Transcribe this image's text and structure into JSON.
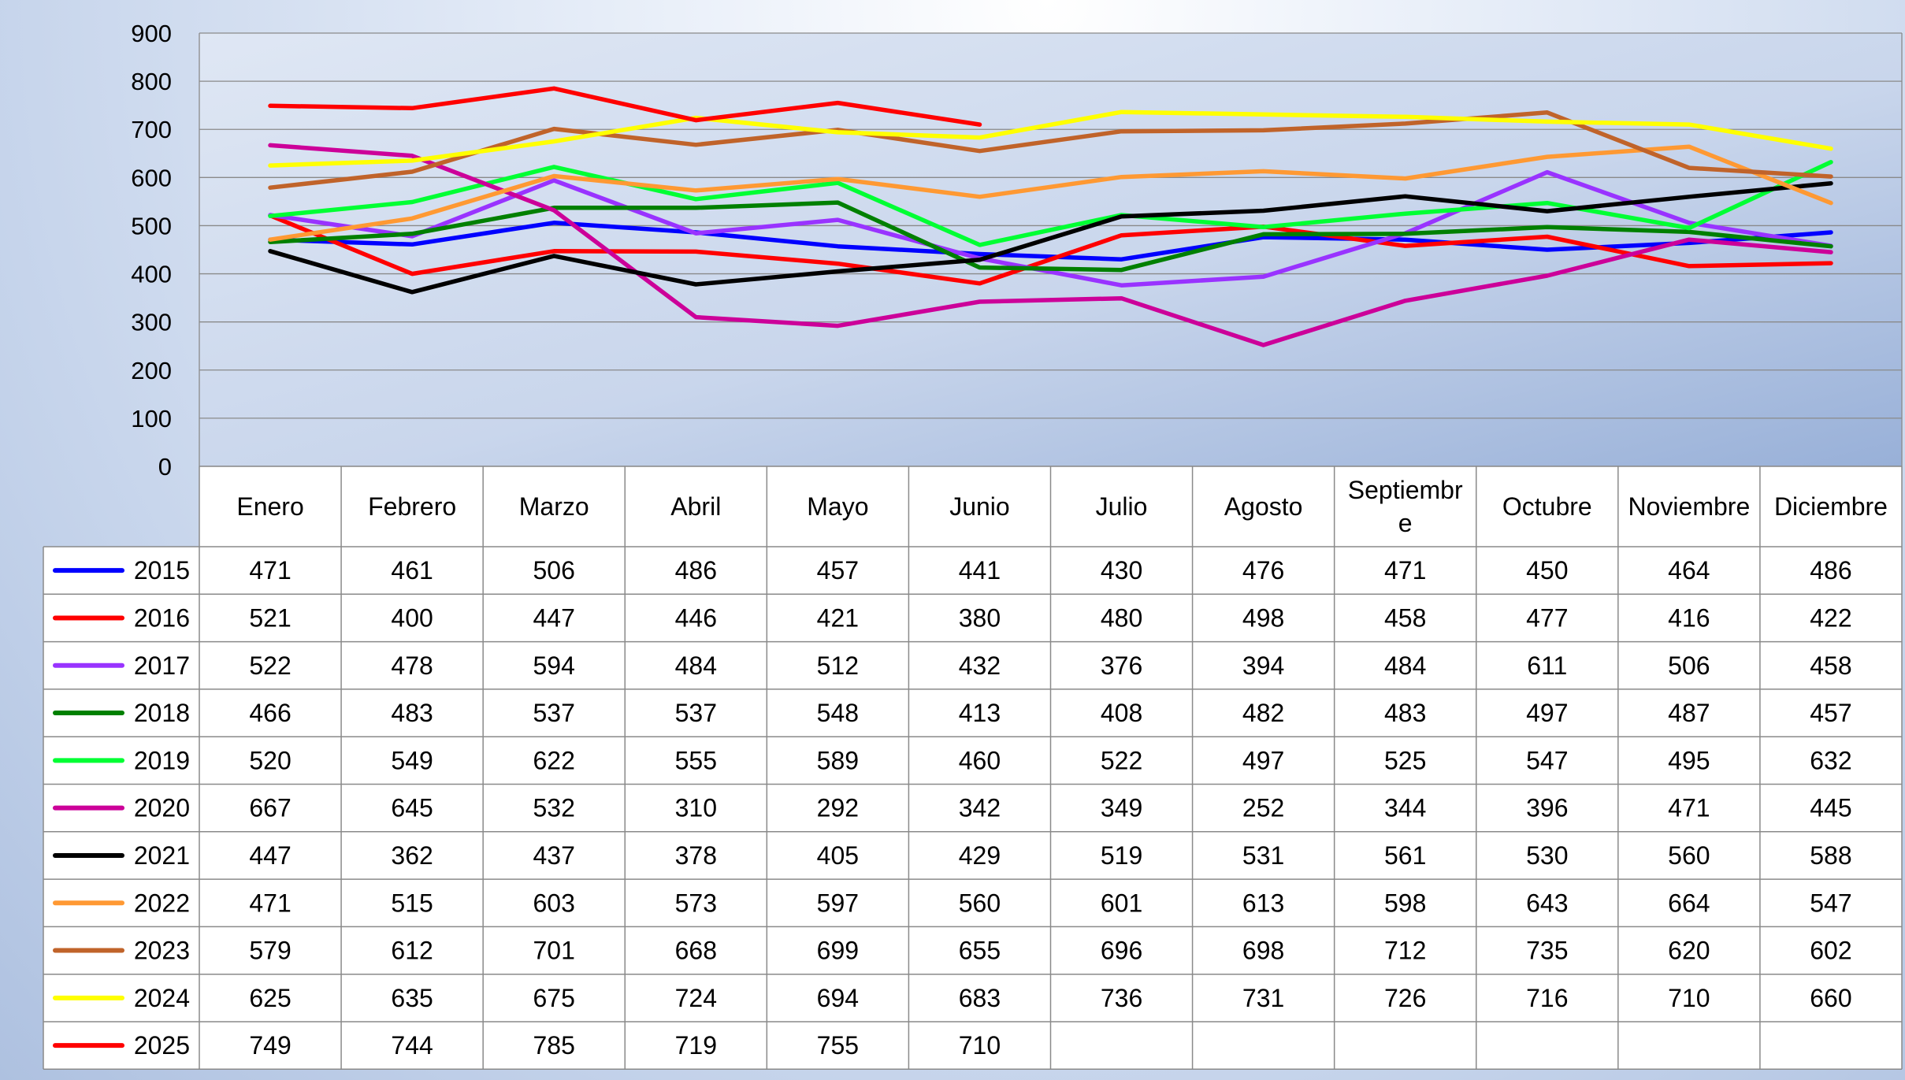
{
  "chart_data": {
    "type": "line",
    "title": "",
    "xlabel": "",
    "ylabel": "",
    "ylim": [
      0,
      900
    ],
    "yticks": [
      0,
      100,
      200,
      300,
      400,
      500,
      600,
      700,
      800,
      900
    ],
    "grid": "horizontal",
    "legend": "data table below chart",
    "categories": [
      "Enero",
      "Febrero",
      "Marzo",
      "Abril",
      "Mayo",
      "Junio",
      "Julio",
      "Agosto",
      "Septiembre",
      "Octubre",
      "Noviembre",
      "Diciembre"
    ],
    "category_display": [
      [
        "Enero"
      ],
      [
        "Febrero"
      ],
      [
        "Marzo"
      ],
      [
        "Abril"
      ],
      [
        "Mayo"
      ],
      [
        "Junio"
      ],
      [
        "Julio"
      ],
      [
        "Agosto"
      ],
      [
        "Septiembr",
        "e"
      ],
      [
        "Octubre"
      ],
      [
        "Noviembre"
      ],
      [
        "Diciembre"
      ]
    ],
    "series": [
      {
        "name": "2015",
        "color": "#0000ff",
        "values": [
          471,
          461,
          506,
          486,
          457,
          441,
          430,
          476,
          471,
          450,
          464,
          486
        ]
      },
      {
        "name": "2016",
        "color": "#ff0000",
        "values": [
          521,
          400,
          447,
          446,
          421,
          380,
          480,
          498,
          458,
          477,
          416,
          422
        ]
      },
      {
        "name": "2017",
        "color": "#9933ff",
        "values": [
          522,
          478,
          594,
          484,
          512,
          432,
          376,
          394,
          484,
          611,
          506,
          458
        ]
      },
      {
        "name": "2018",
        "color": "#008000",
        "values": [
          466,
          483,
          537,
          537,
          548,
          413,
          408,
          482,
          483,
          497,
          487,
          457
        ]
      },
      {
        "name": "2019",
        "color": "#00ff33",
        "values": [
          520,
          549,
          622,
          555,
          589,
          460,
          522,
          497,
          525,
          547,
          495,
          632
        ]
      },
      {
        "name": "2020",
        "color": "#cc0099",
        "values": [
          667,
          645,
          532,
          310,
          292,
          342,
          349,
          252,
          344,
          396,
          471,
          445
        ]
      },
      {
        "name": "2021",
        "color": "#000000",
        "values": [
          447,
          362,
          437,
          378,
          405,
          429,
          519,
          531,
          561,
          530,
          560,
          588
        ]
      },
      {
        "name": "2022",
        "color": "#ff9933",
        "values": [
          471,
          515,
          603,
          573,
          597,
          560,
          601,
          613,
          598,
          643,
          664,
          547
        ]
      },
      {
        "name": "2023",
        "color": "#c0632a",
        "values": [
          579,
          612,
          701,
          668,
          699,
          655,
          696,
          698,
          712,
          735,
          620,
          602
        ]
      },
      {
        "name": "2024",
        "color": "#ffff00",
        "values": [
          625,
          635,
          675,
          724,
          694,
          683,
          736,
          731,
          726,
          716,
          710,
          660
        ]
      },
      {
        "name": "2025",
        "color": "#ff0000",
        "values": [
          749,
          744,
          785,
          719,
          755,
          710,
          null,
          null,
          null,
          null,
          null,
          null
        ]
      }
    ]
  }
}
